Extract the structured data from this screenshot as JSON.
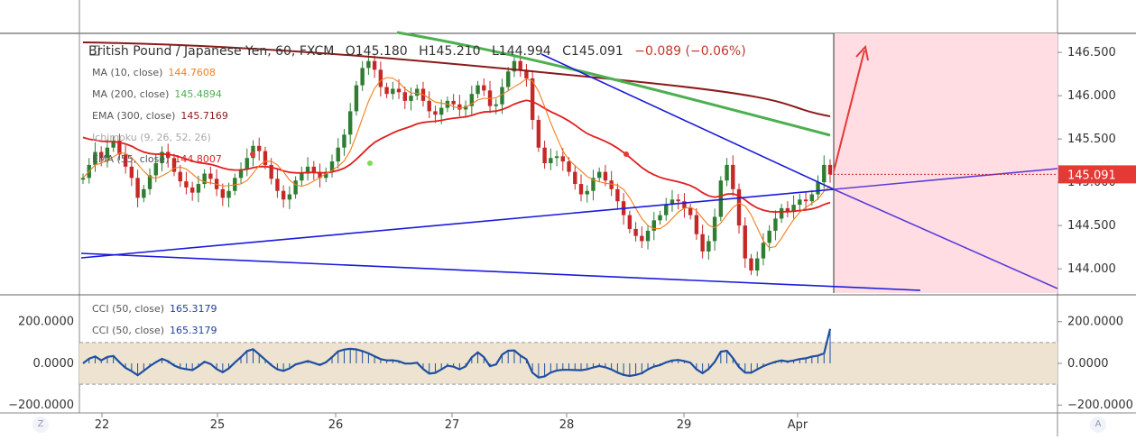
{
  "header": {
    "symbol": "British Pound / Japanese Yen, 60, FXCM",
    "open": "O145.180",
    "high": "H145.210",
    "low": "L144.994",
    "close": "C145.091",
    "change": "−0.089 (−0.06%)"
  },
  "legend": [
    {
      "label": "MA (10, close)",
      "value": "144.7608",
      "color": "#f57c20"
    },
    {
      "label": "MA (200, close)",
      "value": "145.4894",
      "color": "#4caf50"
    },
    {
      "label": "EMA (300, close)",
      "value": "145.7169",
      "color": "#8b1a1a"
    },
    {
      "label": "Ichimoku (9, 26, 52, 26)",
      "value": "",
      "color": "#a0a0a0"
    },
    {
      "label": "EMA (55, close)",
      "value": "144.8007",
      "color": "#e02020"
    }
  ],
  "cci_legend": [
    {
      "label": "CCI (50, close)",
      "value": "165.3179",
      "color": "#2040a0"
    },
    {
      "label": "CCI (50, close)",
      "value": "165.3179",
      "color": "#2040a0"
    }
  ],
  "price_label": "145.091",
  "corner_buttons": {
    "left": "Z",
    "right": "A"
  },
  "colors": {
    "up": "#2e7d32",
    "down": "#c62828",
    "trendline": "#1a1adb",
    "projection": "#5b3ddb",
    "arrow": "#e53935",
    "zone": "#ffdde3",
    "cci_band": "#ede3d0",
    "cci_line": "#1f4fa0"
  },
  "chart_data": [
    {
      "type": "candlestick",
      "title": "British Pound / Japanese Yen, 60, FXCM",
      "x_ticks": [
        "22",
        "25",
        "26",
        "27",
        "28",
        "29",
        "Apr"
      ],
      "y_ticks": [
        "144.000",
        "144.500",
        "145.000",
        "145.500",
        "146.000",
        "146.500"
      ],
      "ylim": [
        143.72,
        146.72
      ],
      "last_price": 145.091,
      "closes": [
        145.05,
        145.2,
        145.35,
        145.28,
        145.4,
        145.48,
        145.32,
        145.18,
        145.05,
        144.82,
        144.92,
        145.08,
        145.22,
        145.35,
        145.28,
        145.12,
        145.01,
        144.94,
        144.88,
        144.98,
        145.1,
        145.04,
        144.92,
        144.82,
        144.9,
        145.05,
        145.15,
        145.28,
        145.42,
        145.36,
        145.2,
        145.04,
        144.9,
        144.8,
        144.86,
        145.02,
        145.1,
        145.18,
        145.12,
        145.05,
        145.12,
        145.24,
        145.4,
        145.55,
        145.82,
        146.12,
        146.32,
        146.4,
        146.3,
        146.1,
        146.02,
        146.08,
        146.04,
        145.94,
        146.0,
        146.08,
        145.94,
        145.82,
        145.78,
        145.86,
        145.94,
        145.9,
        145.84,
        145.88,
        146.02,
        146.12,
        146.06,
        145.88,
        145.9,
        146.1,
        146.28,
        146.4,
        146.3,
        146.2,
        145.72,
        145.4,
        145.22,
        145.28,
        145.3,
        145.24,
        145.12,
        144.98,
        144.86,
        144.9,
        145.05,
        145.12,
        145.02,
        144.92,
        144.78,
        144.62,
        144.46,
        144.38,
        144.32,
        144.44,
        144.56,
        144.62,
        144.74,
        144.8,
        144.78,
        144.7,
        144.62,
        144.4,
        144.2,
        144.32,
        144.6,
        145.02,
        145.2,
        144.92,
        144.5,
        144.12,
        143.98,
        144.12,
        144.3,
        144.44,
        144.58,
        144.7,
        144.66,
        144.74,
        144.8,
        144.78,
        144.86,
        145.0,
        145.2,
        145.09
      ],
      "overlays": [
        {
          "name": "MA (10, close)",
          "value": 144.7608
        },
        {
          "name": "MA (200, close)",
          "value": 145.4894
        },
        {
          "name": "EMA (300, close)",
          "value": 145.7169
        },
        {
          "name": "EMA (55, close)",
          "value": 144.8007
        }
      ]
    },
    {
      "type": "line",
      "title": "CCI (50, close)",
      "y_ticks": [
        "200.0000",
        "0.0000",
        "−200.0000"
      ],
      "ylim": [
        -225,
        320
      ],
      "band": [
        -100,
        100
      ],
      "last_value": 165.3179
    }
  ]
}
